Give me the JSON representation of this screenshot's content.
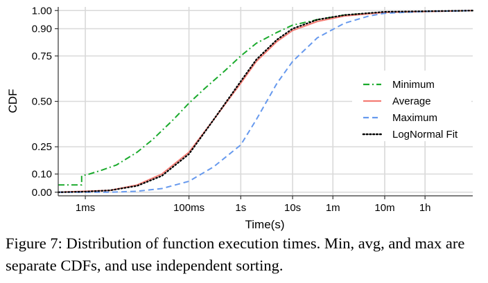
{
  "caption": "Figure 7: Distribution of function execution times. Min, avg, and max are separate CDFs, and use independent sorting.",
  "chart_data": {
    "type": "line",
    "xlabel": "Time(s)",
    "ylabel": "CDF",
    "x_scale": "log",
    "x_ticks": [
      {
        "label": "1ms",
        "value": 0.001
      },
      {
        "label": "100ms",
        "value": 0.1
      },
      {
        "label": "1s",
        "value": 1
      },
      {
        "label": "10s",
        "value": 10
      },
      {
        "label": "1m",
        "value": 60
      },
      {
        "label": "10m",
        "value": 600
      },
      {
        "label": "1h",
        "value": 3600
      }
    ],
    "x_range": [
      0.0003,
      30000
    ],
    "y_ticks": [
      {
        "label": "0.00",
        "value": 0.0
      },
      {
        "label": "0.10",
        "value": 0.1
      },
      {
        "label": "0.25",
        "value": 0.25
      },
      {
        "label": "0.50",
        "value": 0.5
      },
      {
        "label": "0.75",
        "value": 0.75
      },
      {
        "label": "0.90",
        "value": 0.9
      },
      {
        "label": "1.00",
        "value": 1.0
      }
    ],
    "y_range": [
      -0.02,
      1.02
    ],
    "grid": true,
    "legend_position": "right",
    "series": [
      {
        "name": "Minimum",
        "color": "#1aaa2c",
        "dash": "dashdot",
        "points": [
          [
            0.0003,
            0.04
          ],
          [
            0.00085,
            0.04
          ],
          [
            0.00085,
            0.09
          ],
          [
            0.0012,
            0.1
          ],
          [
            0.002,
            0.12
          ],
          [
            0.004,
            0.15
          ],
          [
            0.01,
            0.22
          ],
          [
            0.02,
            0.29
          ],
          [
            0.05,
            0.4
          ],
          [
            0.1,
            0.49
          ],
          [
            0.2,
            0.57
          ],
          [
            0.5,
            0.67
          ],
          [
            1,
            0.75
          ],
          [
            2,
            0.82
          ],
          [
            5,
            0.88
          ],
          [
            10,
            0.92
          ],
          [
            30,
            0.95
          ],
          [
            100,
            0.975
          ],
          [
            600,
            0.99
          ],
          [
            30000,
            1.0
          ]
        ]
      },
      {
        "name": "Average",
        "color": "#f47c74",
        "dash": "solid",
        "points": [
          [
            0.0003,
            0.0
          ],
          [
            0.001,
            0.005
          ],
          [
            0.003,
            0.01
          ],
          [
            0.01,
            0.04
          ],
          [
            0.03,
            0.1
          ],
          [
            0.1,
            0.22
          ],
          [
            0.3,
            0.4
          ],
          [
            1,
            0.6
          ],
          [
            2,
            0.72
          ],
          [
            5,
            0.83
          ],
          [
            10,
            0.89
          ],
          [
            30,
            0.94
          ],
          [
            100,
            0.97
          ],
          [
            600,
            0.99
          ],
          [
            30000,
            1.0
          ]
        ]
      },
      {
        "name": "Maximum",
        "color": "#6699ee",
        "dash": "dashed",
        "points": [
          [
            0.0003,
            0.0
          ],
          [
            0.003,
            0.0
          ],
          [
            0.01,
            0.005
          ],
          [
            0.03,
            0.02
          ],
          [
            0.1,
            0.06
          ],
          [
            0.3,
            0.14
          ],
          [
            1,
            0.26
          ],
          [
            2,
            0.4
          ],
          [
            5,
            0.6
          ],
          [
            10,
            0.72
          ],
          [
            30,
            0.85
          ],
          [
            100,
            0.93
          ],
          [
            300,
            0.97
          ],
          [
            600,
            0.985
          ],
          [
            3600,
            0.995
          ],
          [
            30000,
            1.0
          ]
        ]
      },
      {
        "name": "LogNormal Fit",
        "color": "#000000",
        "dash": "dotted",
        "points": [
          [
            0.0003,
            0.0
          ],
          [
            0.001,
            0.003
          ],
          [
            0.003,
            0.01
          ],
          [
            0.01,
            0.035
          ],
          [
            0.03,
            0.09
          ],
          [
            0.1,
            0.21
          ],
          [
            0.3,
            0.4
          ],
          [
            1,
            0.61
          ],
          [
            2,
            0.73
          ],
          [
            5,
            0.84
          ],
          [
            10,
            0.9
          ],
          [
            30,
            0.95
          ],
          [
            100,
            0.975
          ],
          [
            600,
            0.993
          ],
          [
            30000,
            1.0
          ]
        ]
      }
    ]
  }
}
